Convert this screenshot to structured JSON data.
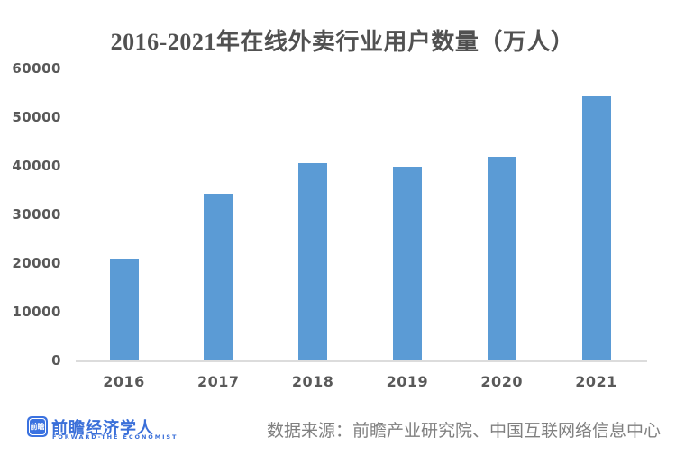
{
  "page": {
    "background": "#ffffff"
  },
  "title": {
    "text": "2016-2021年在线外卖行业用户数量（万人）",
    "color": "#515151"
  },
  "chart_data": {
    "type": "bar",
    "title": "2016-2021年在线外卖行业用户数量（万人）",
    "categories": [
      "2016",
      "2017",
      "2018",
      "2019",
      "2020",
      "2021"
    ],
    "values": [
      20856,
      34338,
      40601,
      39780,
      41883,
      54416
    ],
    "unit": "万人",
    "xlabel": "",
    "ylabel": "",
    "ylim": [
      0,
      60000
    ],
    "yticks": [
      0,
      10000,
      20000,
      30000,
      40000,
      50000,
      60000
    ],
    "grid": false,
    "legend": "none",
    "bar_color": "#5b9bd5",
    "axis_line_color": "#dcdcdc",
    "tick_label_color": "#595959"
  },
  "footer": {
    "logo": {
      "icon_text": "前瞻",
      "icon_bg": "#3b72e0",
      "name": "前瞻经济学人",
      "subtitle": "FORWARD-THE ECONOMIST",
      "color": "#3a6fd9"
    },
    "source": {
      "text": "数据来源：前瞻产业研究院、中国互联网络信息中心",
      "color": "#808080"
    }
  }
}
